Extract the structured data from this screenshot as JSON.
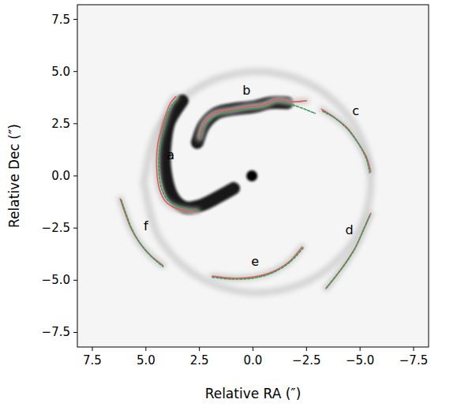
{
  "chart_data": {
    "type": "line",
    "xlabel": "Relative RA (″)",
    "ylabel": "Relative Dec (″)",
    "xlim": [
      8.2,
      -8.2
    ],
    "ylim": [
      -8.2,
      8.2
    ],
    "xticks": [
      {
        "value": 7.5,
        "label": "7.5"
      },
      {
        "value": 5,
        "label": "5.0"
      },
      {
        "value": 2.5,
        "label": "2.5"
      },
      {
        "value": 0,
        "label": "0.0"
      },
      {
        "value": -2.5,
        "label": "−2.5"
      },
      {
        "value": -5,
        "label": "−5.0"
      },
      {
        "value": -7.5,
        "label": "−7.5"
      }
    ],
    "yticks": [
      {
        "value": -7.5,
        "label": "−7.5"
      },
      {
        "value": -5,
        "label": "−5.0"
      },
      {
        "value": -2.5,
        "label": "−2.5"
      },
      {
        "value": 0,
        "label": "0.0"
      },
      {
        "value": 2.5,
        "label": "2.5"
      },
      {
        "value": 5,
        "label": "5.0"
      },
      {
        "value": 7.5,
        "label": "7.5"
      }
    ],
    "grid": false,
    "series": [
      {
        "type": "emission",
        "color": "#d4d4d4",
        "x": [
          5.1,
          4.39,
          2.45,
          -0.2,
          -2.85,
          -4.79,
          -5.5,
          -4.79,
          -2.85,
          -0.2,
          2.45,
          4.39,
          5.1
        ],
        "values": [
          -0.3,
          2.35,
          4.29,
          5.0,
          4.29,
          2.35,
          -0.3,
          -2.95,
          -4.89,
          -5.6,
          -4.89,
          -2.95,
          -0.3
        ]
      },
      {
        "type": "emission",
        "color": "#111111",
        "x": [
          2.6,
          2.3,
          1.7,
          0.9,
          0,
          -0.8,
          -1.6
        ],
        "values": [
          1.6,
          2.4,
          3.0,
          3.2,
          3.3,
          3.5,
          3.5
        ]
      },
      {
        "type": "emission",
        "color": "#111111",
        "x": [
          3.3,
          3.9,
          4.1,
          4.1,
          3.8,
          3.2,
          2.4,
          1.6,
          0.9
        ],
        "values": [
          3.6,
          2.6,
          1.5,
          0.3,
          -0.9,
          -1.5,
          -1.4,
          -1.0,
          -0.6
        ]
      },
      {
        "type": "line",
        "color": "#e05a5a",
        "x": [
          3.6,
          3.9,
          4.2,
          4.45,
          4.5,
          4.4,
          4.1,
          3.6,
          2.9,
          2.6
        ],
        "values": [
          3.8,
          3.4,
          2.5,
          1.5,
          0.5,
          -0.5,
          -1.2,
          -1.55,
          -1.7,
          -1.7
        ]
      },
      {
        "type": "line",
        "color": "#3a9a5a",
        "x": [
          3.5,
          3.85,
          4.15,
          4.35,
          4.4,
          4.3,
          4.0,
          3.5,
          2.9,
          2.6
        ],
        "values": [
          3.7,
          3.3,
          2.4,
          1.4,
          0.4,
          -0.5,
          -1.15,
          -1.45,
          -1.6,
          -1.65
        ]
      },
      {
        "type": "line",
        "color": "#e05a5a",
        "x": [
          2.5,
          2.3,
          1.8,
          1.0,
          0.3,
          -0.5,
          -1.1,
          -1.8,
          -2.5
        ],
        "values": [
          1.8,
          2.5,
          3.0,
          3.15,
          3.3,
          3.4,
          3.65,
          3.55,
          3.6
        ]
      },
      {
        "type": "line",
        "color": "#3a9a5a",
        "x": [
          2.45,
          2.25,
          1.7,
          1.0,
          0.3,
          -0.5,
          -1.2,
          -2.0,
          -2.9
        ],
        "values": [
          1.85,
          2.4,
          2.9,
          3.1,
          3.2,
          3.3,
          3.55,
          3.35,
          3.0
        ]
      },
      {
        "type": "line",
        "color": "#e05a5a",
        "x": [
          -3.2,
          -3.8,
          -4.4,
          -4.9,
          -5.3,
          -5.5
        ],
        "values": [
          3.2,
          2.8,
          2.3,
          1.6,
          0.9,
          0.2
        ]
      },
      {
        "type": "line",
        "color": "#3a9a5a",
        "x": [
          -3.25,
          -3.85,
          -4.45,
          -4.95,
          -5.3,
          -5.45
        ],
        "values": [
          3.1,
          2.75,
          2.2,
          1.5,
          0.8,
          0.15
        ]
      },
      {
        "type": "line",
        "color": "#e05a5a",
        "x": [
          -5.5,
          -5.2,
          -4.8,
          -4.3,
          -3.8,
          -3.4
        ],
        "values": [
          -1.8,
          -2.5,
          -3.4,
          -4.2,
          -4.9,
          -5.4
        ]
      },
      {
        "type": "line",
        "color": "#3a9a5a",
        "x": [
          -5.45,
          -5.15,
          -4.75,
          -4.25,
          -3.75,
          -3.45
        ],
        "values": [
          -1.9,
          -2.6,
          -3.5,
          -4.3,
          -4.95,
          -5.35
        ]
      },
      {
        "type": "line",
        "color": "#e05a5a",
        "x": [
          1.9,
          1.0,
          0,
          -0.9,
          -1.7,
          -2.3
        ],
        "values": [
          -4.8,
          -4.9,
          -4.85,
          -4.6,
          -4.1,
          -3.4
        ]
      },
      {
        "type": "line",
        "color": "#3a9a5a",
        "x": [
          1.9,
          1.0,
          0,
          -0.9,
          -1.7,
          -2.35
        ],
        "values": [
          -4.85,
          -4.95,
          -4.9,
          -4.65,
          -4.15,
          -3.45
        ]
      },
      {
        "type": "line",
        "color": "#e05a5a",
        "x": [
          6.2,
          6.0,
          5.7,
          5.3,
          4.8,
          4.2
        ],
        "values": [
          -1.1,
          -1.7,
          -2.5,
          -3.2,
          -3.8,
          -4.3
        ]
      },
      {
        "type": "line",
        "color": "#3a9a5a",
        "x": [
          6.15,
          5.95,
          5.65,
          5.25,
          4.75,
          4.2
        ],
        "values": [
          -1.15,
          -1.75,
          -2.55,
          -3.25,
          -3.85,
          -4.35
        ]
      },
      {
        "type": "scatter",
        "marker": "circle",
        "color": "#000000",
        "x": [
          0.05
        ],
        "values": [
          0.0
        ]
      }
    ],
    "annotations": [
      {
        "text": "a",
        "x": 3.85,
        "y": 0.8
      },
      {
        "text": "b",
        "x": 0.3,
        "y": 3.9
      },
      {
        "text": "c",
        "x": -4.8,
        "y": 2.9
      },
      {
        "text": "d",
        "x": -4.5,
        "y": -2.8
      },
      {
        "text": "e",
        "x": -0.1,
        "y": -4.3
      },
      {
        "text": "f",
        "x": 5.0,
        "y": -2.6
      }
    ]
  }
}
